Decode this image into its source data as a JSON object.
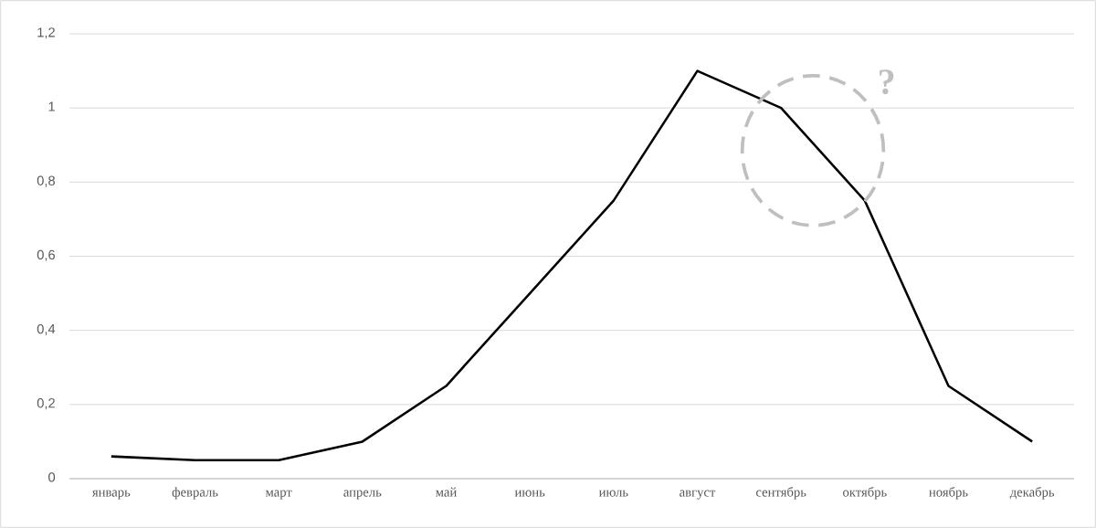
{
  "chart_data": {
    "type": "line",
    "categories": [
      "январь",
      "февраль",
      "март",
      "апрель",
      "май",
      "июнь",
      "июль",
      "август",
      "сентябрь",
      "октябрь",
      "ноябрь",
      "декабрь"
    ],
    "values": [
      0.06,
      0.05,
      0.05,
      0.1,
      0.25,
      0.5,
      0.75,
      1.1,
      1.0,
      0.75,
      0.25,
      0.1
    ],
    "color": "#000000",
    "ylim": [
      0,
      1.2
    ],
    "yticks": [
      0,
      {
        "value": 0.2,
        "label": "0,2"
      },
      {
        "value": 0.4,
        "label": "0,4"
      },
      {
        "value": 0.6,
        "label": "0,6"
      },
      {
        "value": 0.8,
        "label": "0,8"
      },
      1,
      {
        "value": 1.2,
        "label": "1,2"
      }
    ],
    "grid": "y",
    "annotations": [
      "?"
    ]
  }
}
